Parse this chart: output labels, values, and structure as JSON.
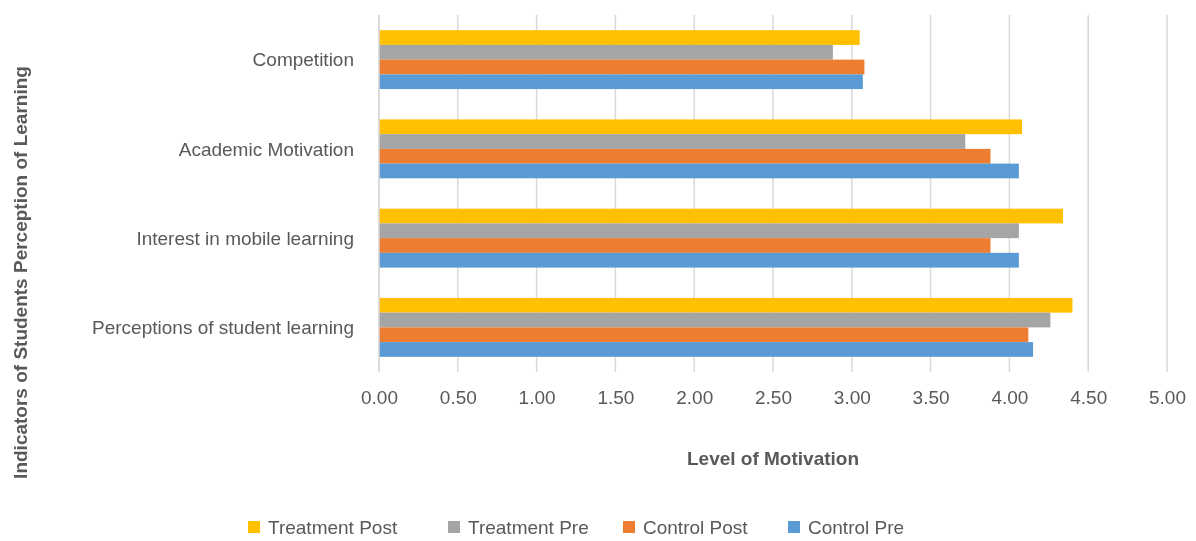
{
  "chart_data": {
    "type": "bar",
    "orientation": "horizontal",
    "xlabel": "Level of Motivation",
    "ylabel": "Indicators of Students Perception of Learning",
    "categories": [
      "Competition",
      "Academic Motivation",
      "Interest in mobile learning",
      "Perceptions of student learning"
    ],
    "series": [
      {
        "name": "Treatment Post",
        "color": "#ffc000",
        "values": [
          3.05,
          4.08,
          4.34,
          4.4
        ]
      },
      {
        "name": "Treatment Pre",
        "color": "#a5a5a5",
        "values": [
          2.88,
          3.72,
          4.06,
          4.26
        ]
      },
      {
        "name": "Control Post",
        "color": "#ed7d31",
        "values": [
          3.08,
          3.88,
          3.88,
          4.12
        ]
      },
      {
        "name": "Control Pre",
        "color": "#5b9bd5",
        "values": [
          3.07,
          4.06,
          4.06,
          4.15
        ]
      }
    ],
    "xlim": [
      0,
      5
    ],
    "xticks": [
      {
        "value": 0,
        "label": "0.00"
      },
      {
        "value": 0.5,
        "label": "0.50"
      },
      {
        "value": 1,
        "label": "1.00"
      },
      {
        "value": 1.5,
        "label": "1.50"
      },
      {
        "value": 2,
        "label": "2.00"
      },
      {
        "value": 2.5,
        "label": "2.50"
      },
      {
        "value": 3,
        "label": "3.00"
      },
      {
        "value": 3.5,
        "label": "3.50"
      },
      {
        "value": 4,
        "label": "4.00"
      },
      {
        "value": 4.5,
        "label": "4.50"
      },
      {
        "value": 5,
        "label": "5.00"
      }
    ],
    "grid": "x",
    "legend": "bottom"
  }
}
